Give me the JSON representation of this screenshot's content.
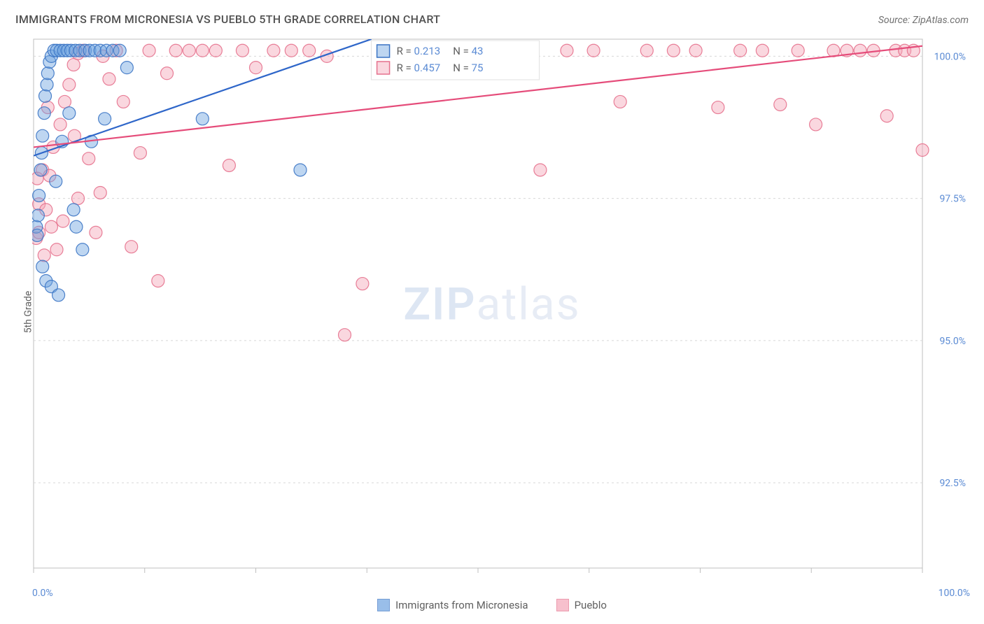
{
  "title": "IMMIGRANTS FROM MICRONESIA VS PUEBLO 5TH GRADE CORRELATION CHART",
  "source_label": "Source:",
  "source_value": "ZipAtlas.com",
  "y_axis_label": "5th Grade",
  "watermark_a": "ZIP",
  "watermark_b": "atlas",
  "chart": {
    "type": "scatter",
    "background_color": "#ffffff",
    "grid_color": "#d8d8d8",
    "axis_line_color": "#bfbfbf",
    "tick_font_color": "#5b8bd4",
    "label_font_color": "#606060",
    "title_fontsize": 16,
    "tick_fontsize": 14,
    "xlim": [
      0,
      100
    ],
    "ylim": [
      91.0,
      100.3
    ],
    "x_ticks": [
      0,
      12.5,
      25,
      37.5,
      50,
      62.5,
      75,
      87.5,
      100
    ],
    "x_tick_labels_shown": {
      "0": "0.0%",
      "100": "100.0%"
    },
    "y_ticks": [
      92.5,
      95.0,
      97.5,
      100.0
    ],
    "y_tick_labels": [
      "92.5%",
      "95.0%",
      "97.5%",
      "100.0%"
    ],
    "marker_radius": 9,
    "marker_opacity": 0.45,
    "marker_stroke_width": 1.2,
    "trend_line_width": 2.2,
    "series": [
      {
        "name": "Immigrants from Micronesia",
        "color_fill": "#6ea3e0",
        "color_stroke": "#3b74c4",
        "trend_color": "#2e66c9",
        "R": "0.213",
        "N": "43",
        "trend": {
          "x1": 0,
          "y1": 98.25,
          "x2": 38,
          "y2": 100.3
        },
        "points": [
          [
            0.3,
            97.0
          ],
          [
            0.4,
            96.85
          ],
          [
            0.5,
            97.2
          ],
          [
            0.6,
            97.55
          ],
          [
            0.8,
            98.0
          ],
          [
            0.9,
            98.3
          ],
          [
            1.0,
            98.6
          ],
          [
            1.2,
            99.0
          ],
          [
            1.3,
            99.3
          ],
          [
            1.5,
            99.5
          ],
          [
            1.6,
            99.7
          ],
          [
            1.8,
            99.9
          ],
          [
            2.0,
            100.0
          ],
          [
            2.3,
            100.1
          ],
          [
            2.6,
            100.1
          ],
          [
            3.0,
            100.1
          ],
          [
            3.4,
            100.1
          ],
          [
            3.8,
            100.1
          ],
          [
            4.2,
            100.1
          ],
          [
            4.7,
            100.1
          ],
          [
            5.2,
            100.1
          ],
          [
            5.8,
            100.1
          ],
          [
            6.3,
            100.1
          ],
          [
            6.9,
            100.1
          ],
          [
            7.5,
            100.1
          ],
          [
            8.2,
            100.1
          ],
          [
            8.9,
            100.1
          ],
          [
            9.7,
            100.1
          ],
          [
            10.5,
            99.8
          ],
          [
            2.5,
            97.8
          ],
          [
            3.2,
            98.5
          ],
          [
            4.0,
            99.0
          ],
          [
            4.5,
            97.3
          ],
          [
            1.0,
            96.3
          ],
          [
            1.4,
            96.05
          ],
          [
            2.0,
            95.95
          ],
          [
            2.8,
            95.8
          ],
          [
            5.5,
            96.6
          ],
          [
            4.8,
            97.0
          ],
          [
            6.5,
            98.5
          ],
          [
            8.0,
            98.9
          ],
          [
            19.0,
            98.9
          ],
          [
            30.0,
            98.0
          ]
        ]
      },
      {
        "name": "Pueblo",
        "color_fill": "#f4a6b8",
        "color_stroke": "#e5718d",
        "trend_color": "#e54c7a",
        "R": "0.457",
        "N": "75",
        "trend": {
          "x1": 0,
          "y1": 98.4,
          "x2": 100,
          "y2": 100.18
        },
        "points": [
          [
            0.3,
            96.8
          ],
          [
            0.6,
            97.4
          ],
          [
            1.0,
            98.0
          ],
          [
            1.4,
            97.3
          ],
          [
            1.8,
            97.9
          ],
          [
            2.2,
            98.4
          ],
          [
            2.6,
            96.6
          ],
          [
            3.0,
            98.8
          ],
          [
            3.5,
            99.2
          ],
          [
            4.0,
            99.5
          ],
          [
            4.5,
            99.85
          ],
          [
            5.0,
            100.05
          ],
          [
            5.6,
            100.1
          ],
          [
            6.2,
            98.2
          ],
          [
            7.0,
            96.9
          ],
          [
            7.8,
            100.0
          ],
          [
            8.5,
            99.6
          ],
          [
            9.3,
            100.1
          ],
          [
            10.1,
            99.2
          ],
          [
            11.0,
            96.65
          ],
          [
            12.0,
            98.3
          ],
          [
            13.0,
            100.1
          ],
          [
            14.0,
            96.05
          ],
          [
            15.0,
            99.7
          ],
          [
            16.0,
            100.1
          ],
          [
            17.5,
            100.1
          ],
          [
            19.0,
            100.1
          ],
          [
            20.5,
            100.1
          ],
          [
            22.0,
            98.08
          ],
          [
            23.5,
            100.1
          ],
          [
            25.0,
            99.8
          ],
          [
            27.0,
            100.1
          ],
          [
            29.0,
            100.1
          ],
          [
            31.0,
            100.1
          ],
          [
            33.0,
            100.0
          ],
          [
            35.0,
            95.1
          ],
          [
            37.0,
            96.0
          ],
          [
            39.0,
            100.1
          ],
          [
            42.0,
            100.1
          ],
          [
            45.0,
            100.1
          ],
          [
            48.0,
            100.1
          ],
          [
            51.0,
            100.1
          ],
          [
            52.0,
            100.0
          ],
          [
            54.0,
            100.1
          ],
          [
            57.0,
            98.0
          ],
          [
            60.0,
            100.1
          ],
          [
            63.0,
            100.1
          ],
          [
            66.0,
            99.2
          ],
          [
            69.0,
            100.1
          ],
          [
            72.0,
            100.1
          ],
          [
            74.5,
            100.1
          ],
          [
            77.0,
            99.1
          ],
          [
            79.5,
            100.1
          ],
          [
            82.0,
            100.1
          ],
          [
            84.0,
            99.15
          ],
          [
            86.0,
            100.1
          ],
          [
            88.0,
            98.8
          ],
          [
            90.0,
            100.1
          ],
          [
            91.5,
            100.1
          ],
          [
            93.0,
            100.1
          ],
          [
            94.5,
            100.1
          ],
          [
            96.0,
            98.95
          ],
          [
            97.0,
            100.1
          ],
          [
            98.0,
            100.1
          ],
          [
            99.0,
            100.1
          ],
          [
            100.0,
            98.35
          ],
          [
            0.6,
            96.9
          ],
          [
            1.2,
            96.5
          ],
          [
            2.0,
            97.0
          ],
          [
            3.3,
            97.1
          ],
          [
            5.0,
            97.5
          ],
          [
            7.5,
            97.6
          ],
          [
            0.4,
            97.85
          ],
          [
            1.6,
            99.1
          ],
          [
            4.6,
            98.6
          ]
        ]
      }
    ],
    "top_legend": {
      "background": "#ffffff",
      "border_color": "#e0e0e0",
      "swatch_size": 18,
      "R_label": "R =",
      "N_label": "N ="
    },
    "bottom_legend": {
      "swatch_size": 18
    }
  }
}
